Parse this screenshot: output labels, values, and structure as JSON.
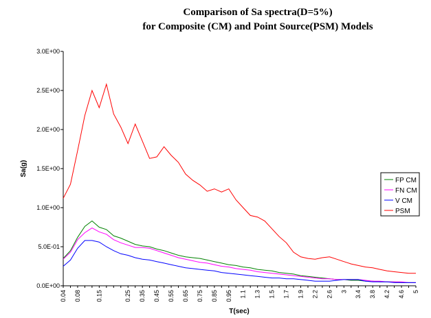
{
  "chart_data": {
    "type": "line",
    "title_line1": "Comparison of Sa spectra(D=5%)",
    "title_line2": "for Composite  (CM) and Point Source(PSM) Models",
    "xlabel": "T(sec)",
    "ylabel": "Sa(g)",
    "ylim": [
      0,
      3.0
    ],
    "yticks": [
      {
        "value": 0,
        "label": "0.0E+00"
      },
      {
        "value": 0.5,
        "label": "5.0E-01"
      },
      {
        "value": 1.0,
        "label": "1.0E+00"
      },
      {
        "value": 1.5,
        "label": "1.5E+00"
      },
      {
        "value": 2.0,
        "label": "2.0E+00"
      },
      {
        "value": 2.5,
        "label": "2.5E+00"
      },
      {
        "value": 3.0,
        "label": "3.0E+00"
      }
    ],
    "x": [
      0.04,
      0.06,
      0.08,
      0.1,
      0.12,
      0.15,
      0.17,
      0.2,
      0.22,
      0.25,
      0.3,
      0.35,
      0.4,
      0.45,
      0.5,
      0.55,
      0.6,
      0.65,
      0.7,
      0.75,
      0.8,
      0.85,
      0.9,
      0.95,
      1.0,
      1.1,
      1.2,
      1.3,
      1.4,
      1.5,
      1.6,
      1.7,
      1.8,
      1.9,
      2.0,
      2.2,
      2.4,
      2.6,
      2.8,
      3.0,
      3.2,
      3.4,
      3.6,
      3.8,
      4.0,
      4.2,
      4.4,
      4.6,
      4.8,
      5.0
    ],
    "x_tick_labels": [
      "0.04",
      "0.08",
      "0.15",
      "0.25",
      "0.35",
      "0.45",
      "0.55",
      "0.65",
      "0.75",
      "0.85",
      "0.95",
      "1.1",
      "1.3",
      "1.5",
      "1.7",
      "1.9",
      "2.2",
      "2.6",
      "3",
      "3.4",
      "3.8",
      "4.2",
      "4.6",
      "5"
    ],
    "x_tick_indices": [
      0,
      2,
      5,
      9,
      11,
      13,
      15,
      17,
      19,
      21,
      23,
      25,
      27,
      29,
      31,
      33,
      35,
      37,
      39,
      41,
      43,
      45,
      47,
      49
    ],
    "series": [
      {
        "name": "FP CM",
        "color": "#008000",
        "values": [
          0.35,
          0.45,
          0.62,
          0.76,
          0.83,
          0.75,
          0.72,
          0.64,
          0.61,
          0.57,
          0.53,
          0.51,
          0.5,
          0.47,
          0.45,
          0.42,
          0.39,
          0.37,
          0.36,
          0.35,
          0.33,
          0.31,
          0.29,
          0.27,
          0.26,
          0.24,
          0.23,
          0.21,
          0.2,
          0.19,
          0.17,
          0.16,
          0.15,
          0.13,
          0.12,
          0.11,
          0.1,
          0.09,
          0.08,
          0.08,
          0.07,
          0.07,
          0.06,
          0.06,
          0.05,
          0.05,
          0.05,
          0.04,
          0.04,
          0.04
        ]
      },
      {
        "name": "FN CM",
        "color": "#ff00ff",
        "values": [
          0.34,
          0.43,
          0.59,
          0.68,
          0.74,
          0.69,
          0.66,
          0.59,
          0.55,
          0.52,
          0.49,
          0.49,
          0.48,
          0.45,
          0.42,
          0.39,
          0.36,
          0.34,
          0.32,
          0.3,
          0.29,
          0.27,
          0.25,
          0.24,
          0.22,
          0.21,
          0.2,
          0.18,
          0.17,
          0.16,
          0.15,
          0.14,
          0.13,
          0.12,
          0.11,
          0.1,
          0.09,
          0.09,
          0.08,
          0.08,
          0.08,
          0.08,
          0.07,
          0.06,
          0.06,
          0.05,
          0.05,
          0.05,
          0.04,
          0.04
        ]
      },
      {
        "name": "V CM",
        "color": "#0000ff",
        "values": [
          0.25,
          0.33,
          0.48,
          0.58,
          0.58,
          0.56,
          0.5,
          0.45,
          0.41,
          0.39,
          0.36,
          0.34,
          0.33,
          0.31,
          0.29,
          0.27,
          0.25,
          0.23,
          0.22,
          0.21,
          0.2,
          0.19,
          0.17,
          0.16,
          0.15,
          0.14,
          0.13,
          0.12,
          0.11,
          0.1,
          0.1,
          0.09,
          0.09,
          0.08,
          0.07,
          0.06,
          0.06,
          0.06,
          0.07,
          0.08,
          0.08,
          0.08,
          0.06,
          0.05,
          0.05,
          0.05,
          0.04,
          0.04,
          0.04,
          0.04
        ]
      },
      {
        "name": "PSM",
        "color": "#ff0000",
        "values": [
          1.12,
          1.3,
          1.73,
          2.18,
          2.5,
          2.28,
          2.58,
          2.2,
          2.03,
          1.82,
          2.07,
          1.85,
          1.63,
          1.65,
          1.78,
          1.67,
          1.58,
          1.43,
          1.35,
          1.29,
          1.21,
          1.24,
          1.2,
          1.24,
          1.1,
          1.0,
          0.9,
          0.88,
          0.83,
          0.73,
          0.63,
          0.55,
          0.43,
          0.37,
          0.35,
          0.34,
          0.36,
          0.37,
          0.34,
          0.31,
          0.28,
          0.26,
          0.24,
          0.23,
          0.21,
          0.19,
          0.18,
          0.17,
          0.16,
          0.16
        ]
      }
    ]
  }
}
